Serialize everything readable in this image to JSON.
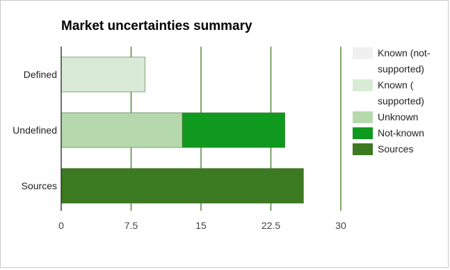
{
  "chart_data": {
    "type": "bar",
    "orientation": "horizontal",
    "stacked": true,
    "title": "Market uncertainties summary",
    "xlabel": "",
    "ylabel": "",
    "categories": [
      "Defined",
      "Undefined",
      "Sources"
    ],
    "xlim": [
      0,
      30
    ],
    "x_ticks": [
      "0",
      "7.5",
      "15",
      "22.5",
      "30"
    ],
    "grid": true,
    "legend_position": "right",
    "series": [
      {
        "name": "Known (not-supported)",
        "label_lines": [
          "Known (not-",
          "supported)"
        ],
        "color": "#f0f0f0",
        "values": [
          0,
          0,
          0
        ]
      },
      {
        "name": "Known ( supported)",
        "label_lines": [
          "Known (",
          "supported)"
        ],
        "color": "#d9ebd6",
        "values": [
          9,
          0,
          0
        ]
      },
      {
        "name": "Unknown",
        "label_lines": [
          "Unknown"
        ],
        "color": "#b5d9ad",
        "values": [
          0,
          13,
          0
        ]
      },
      {
        "name": "Not-known",
        "label_lines": [
          "Not-known"
        ],
        "color": "#0f9a1f",
        "values": [
          0,
          11,
          0
        ]
      },
      {
        "name": "Sources",
        "label_lines": [
          "Sources"
        ],
        "color": "#3c7a21",
        "values": [
          0,
          0,
          26
        ]
      }
    ]
  }
}
